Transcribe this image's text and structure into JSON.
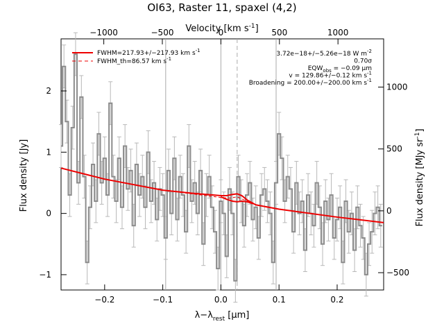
{
  "chart_data": {
    "type": "line",
    "title": "OI63, Raster 11, spaxel (4,2)",
    "xlabel_parts": {
      "main": "λ−λ",
      "sub": "rest",
      "unit": " [μm]"
    },
    "ylabel": "Flux density [Jy]",
    "top_axis_label": {
      "main": "Velocity [km s",
      "sup": "-1",
      "tail": "]"
    },
    "right_axis_label": {
      "main": "Flux density [MJy sr",
      "sup": "-1",
      "tail": "]"
    },
    "xlim": [
      -0.275,
      0.28
    ],
    "ylim": [
      -1.25,
      2.85
    ],
    "velocity_lim": [
      -1365,
      1390
    ],
    "right_lim": [
      -640,
      1390
    ],
    "x_ticks": [
      -0.2,
      -0.1,
      0.0,
      0.1,
      0.2
    ],
    "x_tick_labels": [
      "−0.2",
      "−0.1",
      "0.0",
      "0.1",
      "0.2"
    ],
    "y_ticks": [
      -1,
      0,
      1,
      2
    ],
    "y_tick_labels": [
      "−1",
      "0",
      "1",
      "2"
    ],
    "top_ticks": [
      -1000,
      -500,
      0,
      500,
      1000
    ],
    "top_tick_labels": [
      "−1000",
      "−500",
      "0",
      "500",
      "1000"
    ],
    "right_ticks": [
      -500,
      0,
      500,
      1000
    ],
    "right_tick_labels": [
      "−500",
      "0",
      "500",
      "1000"
    ],
    "vertical_lines": [
      {
        "x": -0.095,
        "style": "solid",
        "color": "#aaaaaa"
      },
      {
        "x": 0.0,
        "style": "solid",
        "color": "#aaaaaa"
      },
      {
        "x": 0.028,
        "style": "dashed",
        "color": "#aaaaaa"
      },
      {
        "x": 0.095,
        "style": "solid",
        "color": "#aaaaaa"
      }
    ],
    "legend": [
      {
        "parts": {
          "a": "FWHM=217.93+/−217.93 km s",
          "sup": "-1"
        },
        "style": "solid",
        "color": "#ee0000"
      },
      {
        "parts": {
          "a": "FWHM_th=86.57 km s",
          "sup": "-1"
        },
        "style": "dashed",
        "color": "#ee0000"
      }
    ],
    "annotations": [
      {
        "parts": {
          "a": "3.72e−18+/−5.26e−18 W m",
          "sup": "-2"
        }
      },
      {
        "parts": {
          "a": "0.70σ"
        }
      },
      {
        "parts": {
          "a": "EQW",
          "sub": "obs",
          "b": " = −0.09 μm"
        }
      },
      {
        "parts": {
          "a": "v = 129.86+/−0.12 km s",
          "sup": "-1"
        }
      },
      {
        "parts": {
          "a": "Broadening = 200.00+/−200.00 km s",
          "sup": "-1"
        }
      }
    ],
    "series": [
      {
        "kind": "step",
        "color": "#8c8c8c",
        "errcolor": "#b8b8b8",
        "x": [
          -0.275,
          -0.27,
          -0.265,
          -0.26,
          -0.255,
          -0.25,
          -0.245,
          -0.24,
          -0.235,
          -0.23,
          -0.225,
          -0.22,
          -0.215,
          -0.21,
          -0.205,
          -0.2,
          -0.195,
          -0.19,
          -0.185,
          -0.18,
          -0.175,
          -0.17,
          -0.165,
          -0.16,
          -0.155,
          -0.15,
          -0.145,
          -0.14,
          -0.135,
          -0.13,
          -0.125,
          -0.12,
          -0.115,
          -0.11,
          -0.105,
          -0.1,
          -0.095,
          -0.09,
          -0.085,
          -0.08,
          -0.075,
          -0.07,
          -0.065,
          -0.06,
          -0.055,
          -0.05,
          -0.045,
          -0.04,
          -0.035,
          -0.03,
          -0.025,
          -0.02,
          -0.015,
          -0.01,
          -0.005,
          0.0,
          0.005,
          0.01,
          0.015,
          0.02,
          0.025,
          0.03,
          0.035,
          0.04,
          0.045,
          0.05,
          0.055,
          0.06,
          0.065,
          0.07,
          0.075,
          0.08,
          0.085,
          0.09,
          0.095,
          0.1,
          0.105,
          0.11,
          0.115,
          0.12,
          0.125,
          0.13,
          0.135,
          0.14,
          0.145,
          0.15,
          0.155,
          0.16,
          0.165,
          0.17,
          0.175,
          0.18,
          0.185,
          0.19,
          0.195,
          0.2,
          0.205,
          0.21,
          0.215,
          0.22,
          0.225,
          0.23,
          0.235,
          0.24,
          0.245,
          0.25,
          0.255,
          0.26,
          0.265,
          0.27,
          0.275
        ],
        "y": [
          1.1,
          2.4,
          1.5,
          0.3,
          1.4,
          2.6,
          0.5,
          1.9,
          0.6,
          -0.8,
          0.1,
          0.8,
          0.2,
          1.3,
          0.5,
          0.9,
          0.3,
          1.8,
          0.6,
          0.2,
          0.9,
          0.1,
          1.1,
          0.4,
          0.7,
          -0.2,
          0.8,
          0.3,
          0.6,
          0.1,
          1.0,
          0.2,
          0.5,
          -0.1,
          0.4,
          0.3,
          -0.4,
          0.7,
          0.0,
          0.9,
          -0.1,
          0.6,
          0.3,
          -0.3,
          1.1,
          0.2,
          0.5,
          0.0,
          0.7,
          -0.5,
          0.3,
          0.6,
          0.1,
          -0.3,
          -0.9,
          0.2,
          0.0,
          -0.7,
          0.4,
          0.0,
          -1.1,
          0.6,
          0.2,
          -0.2,
          0.3,
          0.5,
          -0.1,
          0.1,
          -0.4,
          0.3,
          0.4,
          0.2,
          0.0,
          -0.8,
          0.5,
          1.3,
          0.9,
          0.2,
          0.6,
          0.4,
          -0.3,
          0.5,
          0.0,
          0.2,
          -0.6,
          0.3,
          0.0,
          -0.2,
          0.5,
          0.1,
          -0.5,
          0.2,
          -0.1,
          0.3,
          -0.4,
          -0.1,
          0.1,
          -0.8,
          0.2,
          -0.3,
          0.0,
          -0.6,
          0.1,
          -0.2,
          -0.4,
          -1.0,
          -0.5,
          -0.3,
          0.0,
          0.1,
          -0.2
        ],
        "err": [
          0.35,
          0.35,
          0.35,
          0.35,
          0.35,
          0.35,
          0.35,
          0.35,
          0.35,
          0.35,
          0.35,
          0.35,
          0.35,
          0.35,
          0.35,
          0.35,
          0.35,
          0.35,
          0.35,
          0.35,
          0.35,
          0.35,
          0.35,
          0.35,
          0.35,
          0.35,
          0.35,
          0.35,
          0.35,
          0.35,
          0.35,
          0.35,
          0.35,
          0.35,
          0.35,
          0.35,
          0.35,
          0.35,
          0.35,
          0.35,
          0.35,
          0.35,
          0.35,
          0.35,
          0.35,
          0.35,
          0.35,
          0.35,
          0.35,
          0.35,
          0.35,
          0.35,
          0.35,
          0.35,
          0.35,
          0.35,
          0.35,
          0.35,
          0.35,
          0.35,
          0.35,
          0.35,
          0.35,
          0.35,
          0.35,
          0.35,
          0.35,
          0.35,
          0.35,
          0.35,
          0.35,
          0.35,
          0.35,
          0.35,
          0.35,
          0.35,
          0.35,
          0.35,
          0.35,
          0.35,
          0.35,
          0.35,
          0.35,
          0.35,
          0.35,
          0.35,
          0.35,
          0.35,
          0.35,
          0.35,
          0.35,
          0.35,
          0.35,
          0.35,
          0.35,
          0.35,
          0.35,
          0.35,
          0.35,
          0.35,
          0.35,
          0.35,
          0.35,
          0.35,
          0.35,
          0.35,
          0.35,
          0.35,
          0.35,
          0.35,
          0.35
        ]
      },
      {
        "kind": "line",
        "color": "#ee0000",
        "x": [
          -0.275,
          -0.2,
          -0.1,
          -0.05,
          0.0,
          0.01,
          0.02,
          0.028,
          0.036,
          0.045,
          0.06,
          0.1,
          0.2,
          0.28
        ],
        "y": [
          0.74,
          0.56,
          0.38,
          0.33,
          0.29,
          0.29,
          0.31,
          0.32,
          0.29,
          0.22,
          0.14,
          0.07,
          -0.06,
          -0.15
        ]
      },
      {
        "kind": "line",
        "color": "#ee0000",
        "dash": true,
        "x": [
          -0.275,
          -0.2,
          -0.1,
          0.0,
          0.015,
          0.028,
          0.04,
          0.06,
          0.1,
          0.2,
          0.28
        ],
        "y": [
          0.74,
          0.56,
          0.38,
          0.26,
          0.25,
          0.27,
          0.22,
          0.14,
          0.07,
          -0.06,
          -0.15
        ]
      },
      {
        "kind": "line",
        "color": "#ee0000",
        "x": [
          0.0,
          0.01,
          0.02,
          0.028,
          0.036,
          0.045,
          0.055
        ],
        "y": [
          0.27,
          0.23,
          0.2,
          0.19,
          0.2,
          0.19,
          0.16
        ]
      }
    ]
  }
}
